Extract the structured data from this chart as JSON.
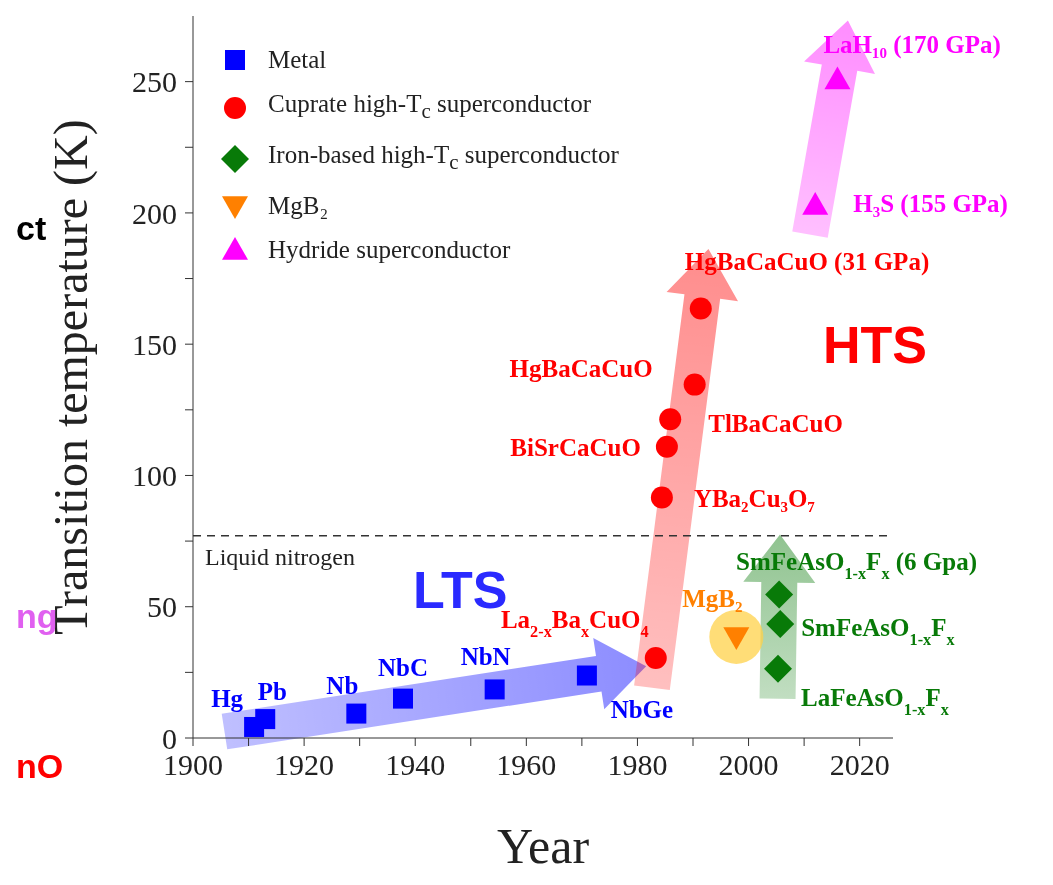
{
  "chart_data": {
    "type": "scatter",
    "xlabel": "Year",
    "ylabel": "Transition temperature (K)",
    "xlim": [
      1900,
      2026
    ],
    "ylim": [
      0,
      275
    ],
    "xticks": [
      1900,
      {
        "value": 1910,
        "label": null
      },
      1920,
      {
        "value": 1930,
        "label": null
      },
      1940,
      {
        "value": 1950,
        "label": null
      },
      1960,
      {
        "value": 1970,
        "label": null
      },
      1980,
      {
        "value": 1990,
        "label": null
      },
      2000,
      {
        "value": 2010,
        "label": null
      },
      2020
    ],
    "yticks": [
      0,
      {
        "value": 25,
        "label": null
      },
      50,
      {
        "value": 75,
        "label": null
      },
      100,
      {
        "value": 125,
        "label": null
      },
      150,
      {
        "value": 175,
        "label": null
      },
      200,
      {
        "value": 225,
        "label": null
      },
      250
    ],
    "grid": false,
    "legend": "top left",
    "series": [
      {
        "name": "Metal",
        "color": "#0000ff",
        "marker": "square",
        "x": [
          1911,
          1913,
          1929.4,
          1937.8,
          1954.3,
          1970.9
        ],
        "values": [
          4.2,
          7.2,
          9.3,
          15,
          18.5,
          23.8
        ]
      },
      {
        "name": "Cuprate high-T$_{c}$ superconductor",
        "color": "#ff0000",
        "marker": "circle",
        "x": [
          1983.3,
          1984.4,
          1985.3,
          1985.9,
          1990.3,
          1991.4
        ],
        "values": [
          30.5,
          91.6,
          110.9,
          121.4,
          134.6,
          163.6
        ]
      },
      {
        "name": "Iron-based high-T$_{c}$ superconductor",
        "color": "#087a08",
        "marker": "diamond",
        "x": [
          2005.3,
          2005.7,
          2005.5
        ],
        "values": [
          26.4,
          43.4,
          54.7
        ]
      },
      {
        "name": "MgB₂",
        "color": "#ff8000",
        "marker": "triangle-down",
        "x": [
          1997.8
        ],
        "values": [
          38.5
        ]
      },
      {
        "name": "Hydride superconductor",
        "color": "#ff00ff",
        "marker": "triangle",
        "x": [
          2012,
          2016
        ],
        "values": [
          203,
          250.8
        ]
      }
    ],
    "ref_lines": [
      {
        "axis": "y",
        "value": 77,
        "label": "Liquid nitrogen",
        "line_style": "dashed",
        "color": "#333333"
      }
    ],
    "annotations": [
      {
        "text": "Hg",
        "x": 1911,
        "y": 4.2
      },
      {
        "text": "Pb",
        "x": 1913,
        "y": 7.2
      },
      {
        "text": "Nb",
        "x": 1929.4,
        "y": 9.3
      },
      {
        "text": "NbC",
        "x": 1937.8,
        "y": 15
      },
      {
        "text": "NbN",
        "x": 1954.3,
        "y": 18.5
      },
      {
        "text": "NbGe",
        "x": 1970.9,
        "y": 23.8
      },
      {
        "text": "La$_{2-x}$Ba$_{x}$CuO$_{4}$",
        "x": 1983.3,
        "y": 30.5
      },
      {
        "text": "YBa₂Cu₃O₇",
        "x": 1984.4,
        "y": 91.6
      },
      {
        "text": "BiSrCaCuO",
        "x": 1985.3,
        "y": 110.9
      },
      {
        "text": "TlBaCaCuO",
        "x": 1985.9,
        "y": 121.4
      },
      {
        "text": "HgBaCaCuO",
        "x": 1990.3,
        "y": 134.6
      },
      {
        "text": "HgBaCaCuO (31 GPa)",
        "x": 1991.4,
        "y": 163.6
      },
      {
        "text": "MgB₂",
        "x": 1997.8,
        "y": 38.5
      },
      {
        "text": "SmFeAsO$_{1-x}$F$_{x}$ (6 Gpa)",
        "x": 2005.5,
        "y": 54.7
      },
      {
        "text": "SmFeAsO$_{1-x}$F$_{x}$",
        "x": 2005.7,
        "y": 43.4
      },
      {
        "text": "LaFeAsO$_{1-x}$F$_{x}$",
        "x": 2005.3,
        "y": 26.4
      },
      {
        "text": "H₃S (155 GPa)",
        "x": 2012,
        "y": 203
      },
      {
        "text": "LaH₁₀ (170 GPa)",
        "x": 2016,
        "y": 250.8
      },
      "LTS",
      "HTS",
      "ct",
      "ng",
      "nO"
    ]
  }
}
